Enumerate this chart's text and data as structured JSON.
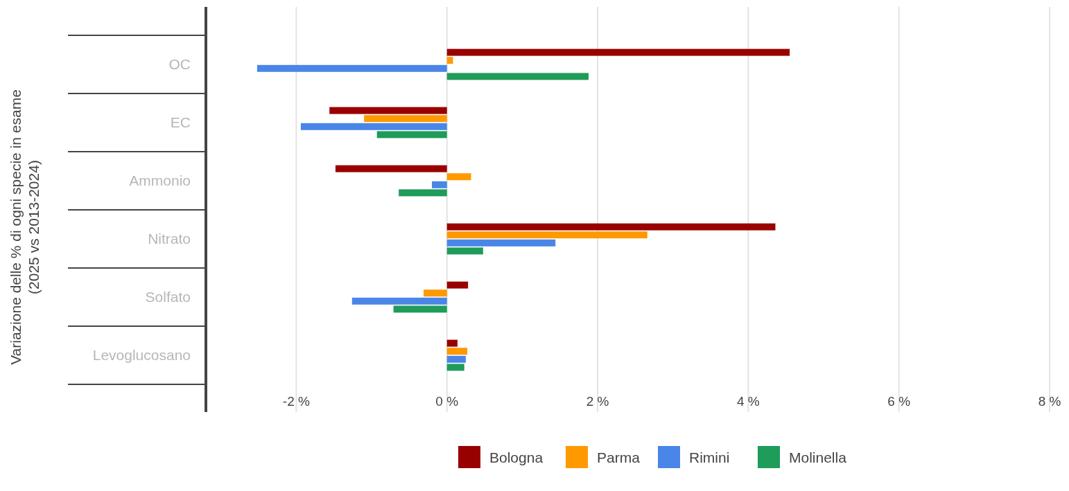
{
  "chart_data": {
    "type": "bar",
    "orientation": "horizontal",
    "ylabel": "Variazione delle % di ogni specie in esame\n(2025 vs 2013-2024)",
    "categories": [
      "OC",
      "EC",
      "Ammonio",
      "Nitrato",
      "Solfato",
      "Levoglucosano"
    ],
    "series": [
      {
        "name": "Bologna",
        "color": "#990000",
        "values": [
          4.55,
          -1.56,
          -1.48,
          4.36,
          0.28,
          0.14
        ]
      },
      {
        "name": "Parma",
        "color": "#ff9900",
        "values": [
          0.08,
          -1.1,
          0.32,
          2.66,
          -0.31,
          0.27
        ]
      },
      {
        "name": "Rimini",
        "color": "#4a86e8",
        "values": [
          -2.52,
          -1.94,
          -0.2,
          1.44,
          -1.26,
          0.25
        ]
      },
      {
        "name": "Molinella",
        "color": "#1f9b5a",
        "values": [
          1.88,
          -0.93,
          -0.64,
          0.48,
          -0.71,
          0.23
        ]
      }
    ],
    "xlim": [
      -3.2,
      8
    ],
    "xticks": [
      {
        "value": -2,
        "label": "-2 %"
      },
      {
        "value": 0,
        "label": "0 %"
      },
      {
        "value": 2,
        "label": "2 %"
      },
      {
        "value": 4,
        "label": "4 %"
      },
      {
        "value": 6,
        "label": "6 %"
      },
      {
        "value": 8,
        "label": "8 %"
      }
    ],
    "grid": "x",
    "legend": "bottom"
  }
}
